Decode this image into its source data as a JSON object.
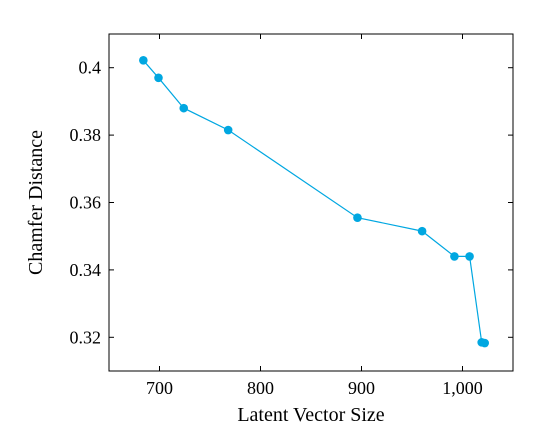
{
  "chart_data": {
    "type": "line",
    "title": "",
    "xlabel": "Latent Vector Size",
    "ylabel": "Chamfer Distance",
    "xlim": [
      650,
      1050
    ],
    "ylim": [
      0.31,
      0.41
    ],
    "x_ticks": [
      700,
      800,
      900,
      1000
    ],
    "x_tick_labels": [
      "700",
      "800",
      "900",
      "1,000"
    ],
    "y_ticks": [
      0.32,
      0.34,
      0.36,
      0.38,
      0.4
    ],
    "y_tick_labels": [
      "0.32",
      "0.34",
      "0.36",
      "0.38",
      "0.4"
    ],
    "grid": false,
    "series": [
      {
        "color": "#00a7e1",
        "marker": "circle",
        "x": [
          684,
          699,
          724,
          768,
          896,
          960,
          992,
          1007,
          1019,
          1022
        ],
        "y": [
          0.4022,
          0.397,
          0.388,
          0.3815,
          0.3555,
          0.3515,
          0.344,
          0.344,
          0.3185,
          0.3183
        ]
      }
    ]
  }
}
